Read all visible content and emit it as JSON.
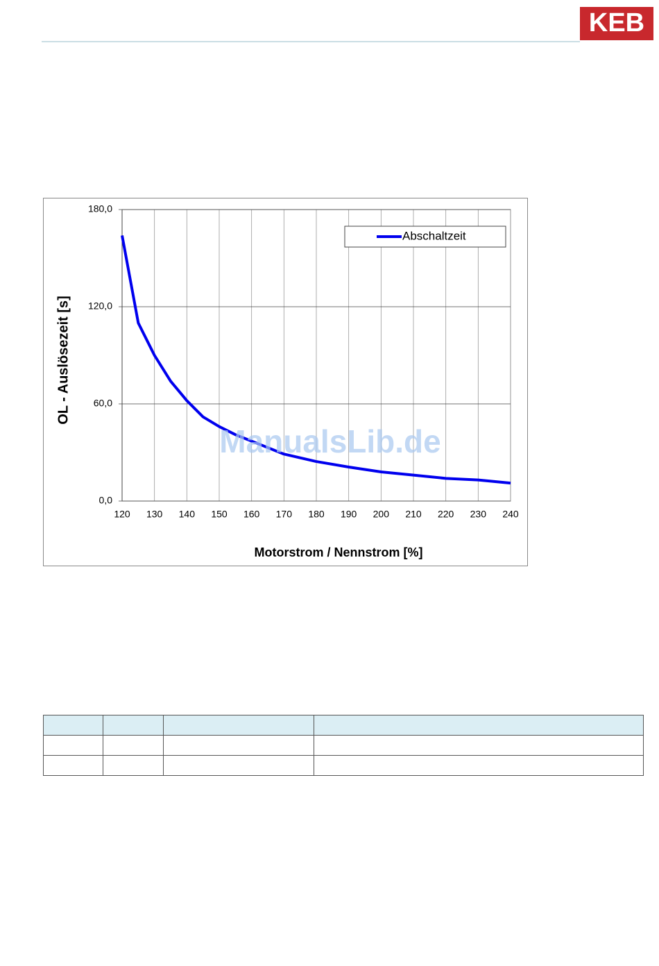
{
  "header": {
    "logo": "KEB"
  },
  "watermark": "ManualsLib.de",
  "chart_data": {
    "type": "line",
    "x": [
      120,
      125,
      130,
      135,
      140,
      145,
      150,
      155,
      160,
      170,
      180,
      190,
      200,
      210,
      220,
      230,
      240
    ],
    "series": [
      {
        "name": "Abschaltzeit",
        "color": "#0000ee",
        "values": [
          164,
          110,
          90,
          74,
          62,
          52,
          46,
          41,
          37,
          29,
          24.4,
          21,
          18,
          16,
          14,
          13,
          11.1
        ]
      }
    ],
    "xlim": [
      120,
      240
    ],
    "xticks": [
      120,
      130,
      140,
      150,
      160,
      170,
      180,
      190,
      200,
      210,
      220,
      230,
      240
    ],
    "ylim": [
      0,
      180
    ],
    "yticks": [
      {
        "value": 0,
        "label": "0,0"
      },
      {
        "value": 60,
        "label": "60,0"
      },
      {
        "value": 120,
        "label": "120,0"
      },
      {
        "value": 180,
        "label": "180,0"
      }
    ],
    "xlabel": "Motorstrom / Nennstrom [%]",
    "ylabel": "OL - Auslösezeit [s]",
    "grid": true,
    "legend": "upper right"
  }
}
